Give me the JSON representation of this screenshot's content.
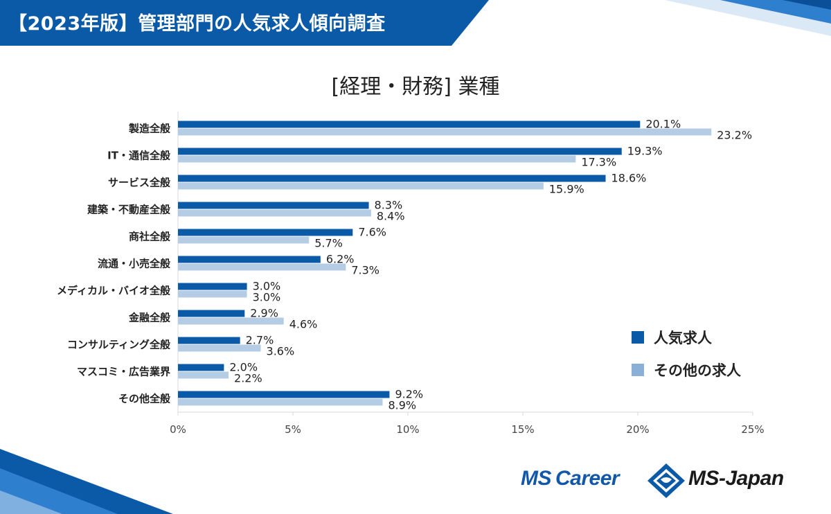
{
  "header": {
    "title": "【2023年版】管理部門の人気求人傾向調査"
  },
  "colors": {
    "brand_blue": "#0b5aa8",
    "series_popular": "#0b5aa8",
    "series_other": "#b5cde4",
    "legend_other": "#8ab0d8",
    "grid": "#d9d9d9",
    "text": "#222222"
  },
  "chart_data": {
    "type": "bar",
    "orientation": "horizontal",
    "title": "[経理・財務] 業種",
    "categories": [
      "製造全般",
      "IT・通信全般",
      "サービス全般",
      "建築・不動産全般",
      "商社全般",
      "流通・小売全般",
      "メディカル・バイオ全般",
      "金融全般",
      "コンサルティング全般",
      "マスコミ・広告業界",
      "その他全般"
    ],
    "series": [
      {
        "name": "人気求人",
        "values": [
          20.1,
          19.3,
          18.6,
          8.3,
          7.6,
          6.2,
          3.0,
          2.9,
          2.7,
          2.0,
          9.2
        ],
        "labels": [
          "20.1%",
          "19.3%",
          "18.6%",
          "8.3%",
          "7.6%",
          "6.2%",
          "3.0%",
          "2.9%",
          "2.7%",
          "2.0%",
          "9.2%"
        ]
      },
      {
        "name": "その他の求人",
        "values": [
          23.2,
          17.3,
          15.9,
          8.4,
          5.7,
          7.3,
          3.0,
          4.6,
          3.6,
          2.2,
          8.9
        ],
        "labels": [
          "23.2%",
          "17.3%",
          "15.9%",
          "8.4%",
          "5.7%",
          "7.3%",
          "3.0%",
          "4.6%",
          "3.6%",
          "2.2%",
          "8.9%"
        ]
      }
    ],
    "xlim": [
      0,
      25
    ],
    "x_ticks": [
      0,
      5,
      10,
      15,
      20,
      25
    ],
    "x_tick_labels": [
      "0%",
      "5%",
      "10%",
      "15%",
      "20%",
      "25%"
    ],
    "grid": false,
    "legend_position": "bottom-right"
  },
  "logo": {
    "left_text_ms": "MS",
    "left_text_career": "Career",
    "right_text": "MS-Japan"
  }
}
